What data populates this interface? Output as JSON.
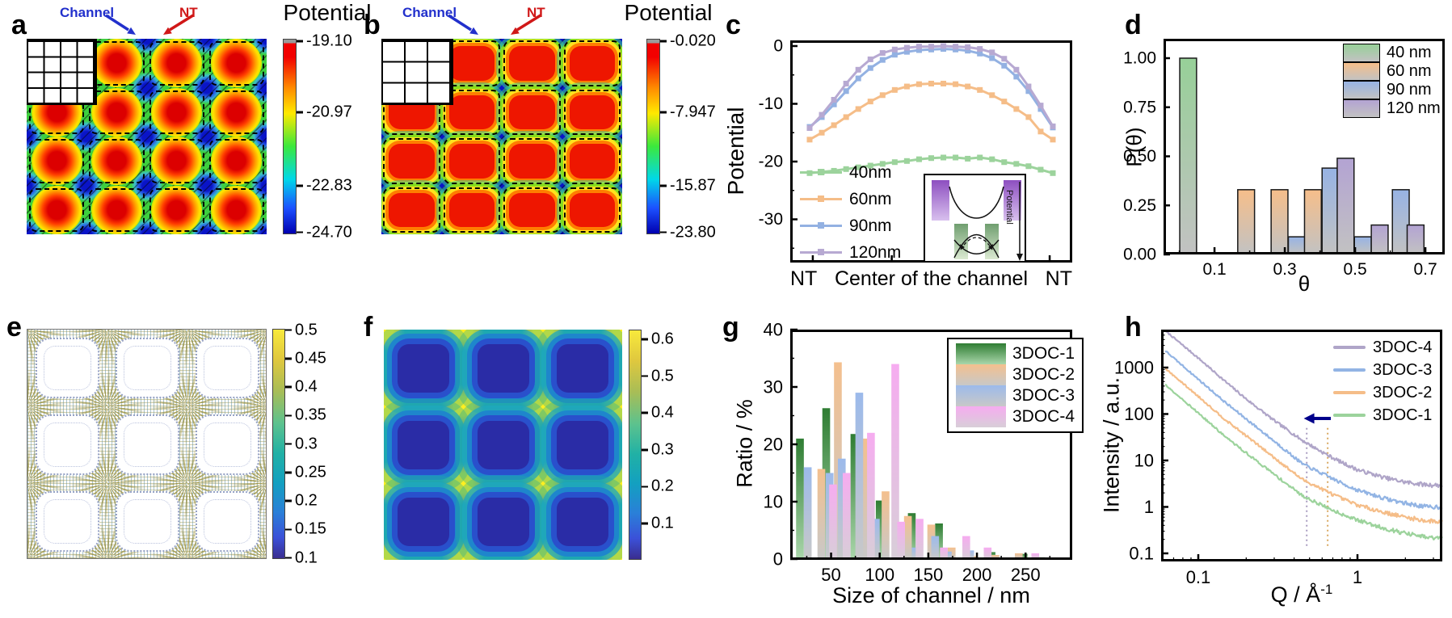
{
  "panels": {
    "a": {
      "label": "a",
      "ann_channel": "Channel",
      "ann_nt": "NT",
      "colorbar_title": "Potential",
      "colorbar_ticks": [
        "-19.10",
        "-20.97",
        "-22.83",
        "-24.70"
      ]
    },
    "b": {
      "label": "b",
      "ann_channel": "Channel",
      "ann_nt": "NT",
      "colorbar_title": "Potential",
      "colorbar_ticks": [
        "-0.020",
        "-7.947",
        "-15.87",
        "-23.80"
      ]
    },
    "c": {
      "label": "c",
      "ylabel": "Potential",
      "xlabel_left": "NT",
      "xlabel_center": "Center of the channel",
      "xlabel_right": "NT",
      "inset_label": "Potential"
    },
    "d": {
      "label": "d",
      "ylabel": "P(θ)",
      "xlabel": "θ"
    },
    "e": {
      "label": "e",
      "colorbar_ticks": [
        "0.5",
        "0.45",
        "0.4",
        "0.35",
        "0.3",
        "0.25",
        "0.2",
        "0.15",
        "0.1"
      ]
    },
    "f": {
      "label": "f",
      "colorbar_ticks": [
        "0.6",
        "0.5",
        "0.4",
        "0.3",
        "0.2",
        "0.1"
      ]
    },
    "g": {
      "label": "g",
      "ylabel": "Ratio / %",
      "xlabel": "Size of channel / nm"
    },
    "h": {
      "label": "h",
      "ylabel": "Intensity / a.u.",
      "xlabel_main": "Q / Å",
      "xlabel_sup": "-1"
    }
  },
  "chart_data": [
    {
      "panel": "a",
      "type": "heatmap",
      "title": "Potential",
      "colorbar_ticks": [
        -19.1,
        -20.97,
        -22.83,
        -24.7
      ],
      "description": "4x4 lattice of circular potential wells (red, jet colormap) inside channel cells separated by hatched NT walls (green) with blue minima at wall crossings; white 4x4 channel grid inset at top-left",
      "annotations": [
        "Channel",
        "NT"
      ]
    },
    {
      "panel": "b",
      "type": "heatmap",
      "title": "Potential",
      "colorbar_ticks": [
        -0.02,
        -7.947,
        -15.87,
        -23.8
      ],
      "description": "4x4 lattice of rounded-square high-potential regions (red) filling channel cells, green/cyan hatched NT walls, blue minima at crossings; white 3x3 channel grid inset at top-left",
      "annotations": [
        "Channel",
        "NT"
      ]
    },
    {
      "panel": "c",
      "type": "line",
      "ylabel": "Potential",
      "xlabel": "NT Center of the channel NT",
      "yticks": [
        0,
        -10,
        -20,
        -30
      ],
      "ylim": [
        -36.5,
        1
      ],
      "x_rel": [
        0,
        0.05,
        0.1,
        0.15,
        0.2,
        0.25,
        0.3,
        0.35,
        0.4,
        0.45,
        0.5,
        0.55,
        0.6,
        0.65,
        0.7,
        0.75,
        0.8,
        0.85,
        0.9,
        0.95,
        1
      ],
      "series": [
        {
          "name": "40nm",
          "color": "#9CD39C",
          "y": [
            -22.0,
            -21.8,
            -21.6,
            -21.3,
            -21.0,
            -20.7,
            -20.4,
            -20.1,
            -19.9,
            -19.6,
            -19.4,
            -19.3,
            -19.3,
            -19.5,
            -19.3,
            -19.6,
            -20.1,
            -20.4,
            -20.8,
            -21.4,
            -22.0
          ]
        },
        {
          "name": "60nm",
          "color": "#F5BD88",
          "y": [
            -16.2,
            -15.0,
            -13.7,
            -12.3,
            -10.9,
            -9.6,
            -8.5,
            -7.6,
            -7.0,
            -6.6,
            -6.5,
            -6.5,
            -6.6,
            -7.0,
            -7.6,
            -8.5,
            -9.6,
            -10.9,
            -12.3,
            -14.8,
            -16.2
          ]
        },
        {
          "name": "90nm",
          "color": "#93B1E2",
          "y": [
            -14.0,
            -12.3,
            -10.1,
            -7.8,
            -5.6,
            -3.8,
            -2.4,
            -1.5,
            -1.0,
            -0.7,
            -0.6,
            -0.5,
            -0.6,
            -0.8,
            -1.3,
            -2.1,
            -3.4,
            -5.3,
            -7.8,
            -10.9,
            -14.1
          ]
        },
        {
          "name": "120nm",
          "color": "#B7A9D2",
          "y": [
            -14.2,
            -11.9,
            -9.3,
            -6.5,
            -4.1,
            -2.3,
            -1.2,
            -0.6,
            -0.3,
            -0.1,
            -0.1,
            0.0,
            -0.1,
            -0.2,
            -0.5,
            -1.1,
            -2.2,
            -4.1,
            -7.0,
            -10.3,
            -13.9
          ]
        }
      ]
    },
    {
      "panel": "d",
      "type": "bar",
      "ylabel": "P(θ)",
      "xlabel": "θ",
      "ytick_values": [
        0,
        0.25,
        0.5,
        0.75,
        1
      ],
      "ytick_labels": [
        "0.00",
        "0.25",
        "0.50",
        "0.75",
        "1.00"
      ],
      "xticks": [
        0.1,
        0.3,
        0.5,
        0.7
      ],
      "xminor": [
        0,
        0.2,
        0.4,
        0.6
      ],
      "xlim": [
        -0.045,
        0.755
      ],
      "ylim": [
        0,
        1.1
      ],
      "series": [
        {
          "label": "40 nm",
          "color": "#97D098"
        },
        {
          "label": "60 nm",
          "color": "#F6BE8A"
        },
        {
          "label": "90 nm",
          "color": "#97B3E4"
        },
        {
          "label": "120 nm",
          "color": "#B3A3D3"
        }
      ],
      "bars": [
        {
          "x": 0.025,
          "p": 1.0,
          "s": 0
        },
        {
          "x": 0.19,
          "p": 0.33,
          "s": 1
        },
        {
          "x": 0.285,
          "p": 0.33,
          "s": 1
        },
        {
          "x": 0.334,
          "p": 0.09,
          "s": 2
        },
        {
          "x": 0.38,
          "p": 0.33,
          "s": 1
        },
        {
          "x": 0.43,
          "p": 0.44,
          "s": 2
        },
        {
          "x": 0.473,
          "p": 0.49,
          "s": 3
        },
        {
          "x": 0.522,
          "p": 0.09,
          "s": 2
        },
        {
          "x": 0.57,
          "p": 0.15,
          "s": 3
        },
        {
          "x": 0.63,
          "p": 0.33,
          "s": 2
        },
        {
          "x": 0.672,
          "p": 0.15,
          "s": 3
        }
      ]
    },
    {
      "panel": "e",
      "type": "heatmap",
      "colorbar_ticks": [
        0.5,
        0.45,
        0.4,
        0.35,
        0.3,
        0.25,
        0.2,
        0.15,
        0.1
      ],
      "description": "quiver/vector-field map of 3x3 rounded-square channels (white) with dense small arrows colored by magnitude (parula), radial starbursts at wall crossings"
    },
    {
      "panel": "f",
      "type": "heatmap",
      "colorbar_ticks": [
        0.6,
        0.5,
        0.4,
        0.3,
        0.2,
        0.1
      ],
      "description": "filled contour map, 3x3 dark-blue rounded squares (low values) on teal background with yellow maxima at wall crossings (parula colormap)"
    },
    {
      "panel": "g",
      "type": "bar",
      "ylabel": "Ratio / %",
      "xlabel": "Size of channel / nm",
      "yticks": [
        0,
        10,
        20,
        30,
        40
      ],
      "xticks": [
        50,
        100,
        150,
        200,
        250
      ],
      "xlim": [
        8,
        298
      ],
      "ylim": [
        0,
        40
      ],
      "series": [
        {
          "label": "3DOC-1",
          "color": "#2F7D33",
          "color2": "#A9D6AA",
          "bars": [
            [
              18,
              21
            ],
            [
              45,
              26.3
            ],
            [
              74,
              21.8
            ],
            [
              100,
              10.2
            ],
            [
              133,
              8
            ],
            [
              161,
              6.2
            ],
            [
              215,
              1.2
            ],
            [
              248,
              0.9
            ],
            [
              266,
              0.3
            ]
          ]
        },
        {
          "label": "3DOC-2",
          "color": "#F4C08E",
          "color2": "#C8C8C8",
          "bars": [
            [
              40,
              15.7
            ],
            [
              57,
              34.3
            ],
            [
              85,
              21
            ],
            [
              106,
              11.8
            ],
            [
              129,
              7.5
            ],
            [
              153,
              6
            ],
            [
              174,
              2
            ],
            [
              197,
              0.5
            ],
            [
              219,
              0.7
            ],
            [
              243,
              1
            ]
          ]
        },
        {
          "label": "3DOC-3",
          "color": "#9CBAEB",
          "color2": "#C8C8C8",
          "bars": [
            [
              26,
              16
            ],
            [
              48.5,
              15
            ],
            [
              61,
              17.5
            ],
            [
              79,
              29
            ],
            [
              96,
              7
            ],
            [
              137,
              2
            ],
            [
              157,
              4
            ],
            [
              170,
              1.3
            ],
            [
              193,
              1.5
            ]
          ]
        },
        {
          "label": "3DOC-4",
          "color": "#F6ACF0",
          "color2": "#D8CED8",
          "bars": [
            [
              52,
              13
            ],
            [
              66,
              15
            ],
            [
              91,
              22
            ],
            [
              116,
              34
            ],
            [
              122,
              6.5
            ],
            [
              141,
              7
            ],
            [
              166,
              2
            ],
            [
              189,
              4
            ],
            [
              211,
              2
            ],
            [
              260,
              1
            ]
          ]
        }
      ]
    },
    {
      "panel": "h",
      "type": "line-log",
      "ylabel": "Intensity / a.u.",
      "xlabel": "Q / Å⁻¹",
      "ytick_labels": [
        "0.1",
        "1",
        "10",
        "100",
        "1000"
      ],
      "ytick_values": [
        0.1,
        1,
        10,
        100,
        1000
      ],
      "xtick_labels": [
        "0.1",
        "1"
      ],
      "xtick_values": [
        0.1,
        1
      ],
      "xlim": [
        0.062,
        3.4
      ],
      "ylim": [
        0.068,
        6600
      ],
      "series": [
        {
          "name": "3DOC-4",
          "color": "#AFA5C8",
          "anchors": [
            [
              0.062,
              6200
            ],
            [
              0.1,
              1600
            ],
            [
              0.15,
              480
            ],
            [
              0.2,
              210
            ],
            [
              0.3,
              72
            ],
            [
              0.45,
              27
            ],
            [
              0.55,
              18
            ],
            [
              0.65,
              13
            ],
            [
              0.8,
              9
            ],
            [
              1,
              6.3
            ],
            [
              1.5,
              4.2
            ],
            [
              2,
              3.4
            ],
            [
              2.7,
              3.0
            ],
            [
              3.4,
              2.9
            ]
          ]
        },
        {
          "name": "3DOC-3",
          "color": "#92B4E4",
          "anchors": [
            [
              0.062,
              2300
            ],
            [
              0.1,
              560
            ],
            [
              0.15,
              170
            ],
            [
              0.2,
              78
            ],
            [
              0.3,
              26
            ],
            [
              0.45,
              8.5
            ],
            [
              0.55,
              6
            ],
            [
              0.65,
              4.6
            ],
            [
              0.8,
              3.2
            ],
            [
              1,
              2.3
            ],
            [
              1.5,
              1.5
            ],
            [
              2,
              1.2
            ],
            [
              2.7,
              1.0
            ],
            [
              3.4,
              1.0
            ]
          ]
        },
        {
          "name": "3DOC-2",
          "color": "#F5BD88",
          "anchors": [
            [
              0.062,
              950
            ],
            [
              0.1,
              240
            ],
            [
              0.15,
              72
            ],
            [
              0.2,
              34
            ],
            [
              0.3,
              11.5
            ],
            [
              0.45,
              3.9
            ],
            [
              0.55,
              2.8
            ],
            [
              0.65,
              2.1
            ],
            [
              0.8,
              1.5
            ],
            [
              1,
              1.1
            ],
            [
              1.5,
              0.75
            ],
            [
              2,
              0.6
            ],
            [
              2.7,
              0.5
            ],
            [
              3.4,
              0.48
            ]
          ]
        },
        {
          "name": "3DOC-1",
          "color": "#9CD39C",
          "anchors": [
            [
              0.062,
              430
            ],
            [
              0.1,
              105
            ],
            [
              0.15,
              31
            ],
            [
              0.2,
              14.5
            ],
            [
              0.3,
              5.0
            ],
            [
              0.45,
              1.75
            ],
            [
              0.55,
              1.25
            ],
            [
              0.65,
              0.95
            ],
            [
              0.8,
              0.7
            ],
            [
              1,
              0.52
            ],
            [
              1.5,
              0.34
            ],
            [
              2,
              0.27
            ],
            [
              2.7,
              0.22
            ],
            [
              3.4,
              0.21
            ]
          ]
        }
      ],
      "dotted": [
        {
          "q": 0.48,
          "color": "#A89CC0"
        },
        {
          "q": 0.65,
          "color": "#D8A860"
        }
      ],
      "dotted_irange": [
        0.14,
        50
      ],
      "arrow": {
        "q1": 0.46,
        "q2": 0.68,
        "i": 80,
        "color": "#00008B"
      }
    }
  ],
  "colors": {
    "navy_arrow": "#00008B",
    "channel_label": "#2230CC",
    "nt_label": "#D01818"
  }
}
